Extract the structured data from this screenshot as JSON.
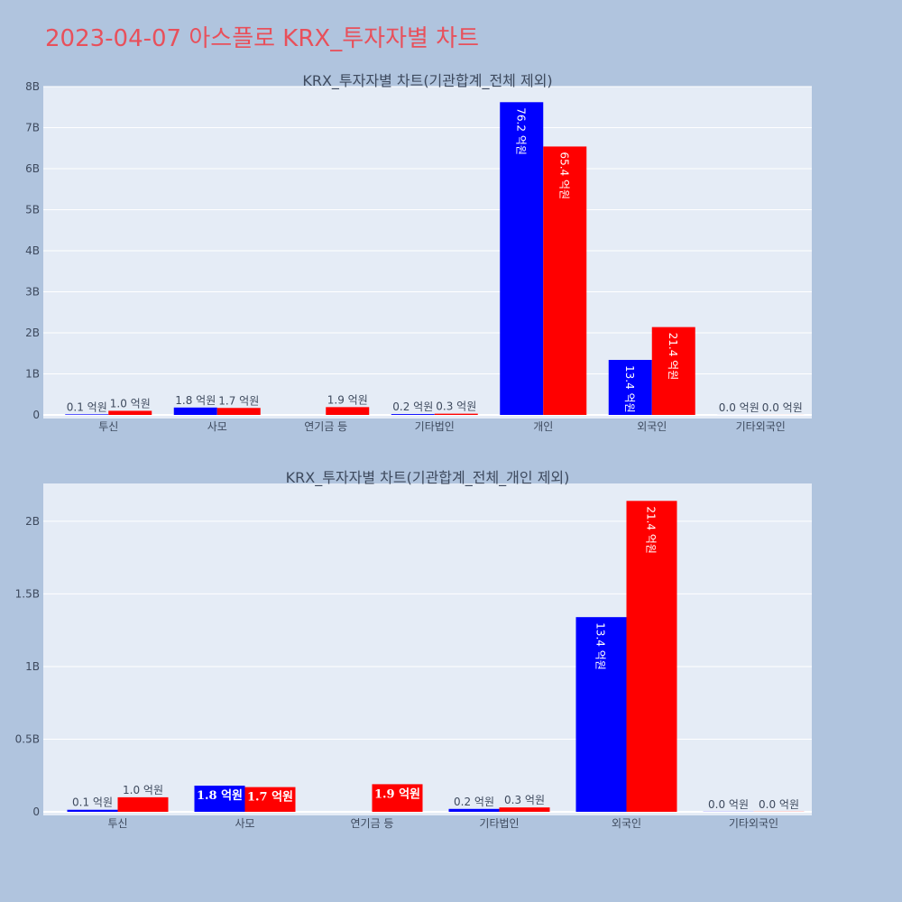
{
  "page": {
    "title": "2023-04-07 아스플로 KRX_투자자별 차트"
  },
  "chart_data": [
    {
      "type": "bar",
      "title": "KRX_투자자별 차트(기관합계_전체 제외)",
      "categories": [
        "투신",
        "사모",
        "연기금 등",
        "기타법인",
        "개인",
        "외국인",
        "기타외국인"
      ],
      "series": [
        {
          "values": [
            14000000,
            180000000,
            0,
            20000000,
            7620000000,
            1340000000,
            1000000
          ],
          "labels": [
            "0.1 억원",
            "1.8 억원",
            "",
            "0.2 억원",
            "76.2 억원",
            "13.4 억원",
            "0.0 억원"
          ],
          "color": "#0000ff"
        },
        {
          "values": [
            100000000,
            170000000,
            190000000,
            30000000,
            6540000000,
            2140000000,
            1000000
          ],
          "labels": [
            "1.0 억원",
            "1.7 억원",
            "1.9 억원",
            "0.3 억원",
            "65.4 억원",
            "21.4 억원",
            "0.0 억원"
          ],
          "color": "#ff0000"
        }
      ],
      "ylim": [
        0,
        8000000000
      ],
      "yticks": [
        0,
        1000000000,
        2000000000,
        3000000000,
        4000000000,
        5000000000,
        6000000000,
        7000000000,
        8000000000
      ],
      "yticklabels": [
        "0",
        "1B",
        "2B",
        "3B",
        "4B",
        "5B",
        "6B",
        "7B",
        "8B"
      ],
      "grid": true,
      "plot_bg": "#e5ecf6"
    },
    {
      "type": "bar",
      "title": "KRX_투자자별 차트(기관합계_전체_개인 제외)",
      "categories": [
        "투신",
        "사모",
        "연기금 등",
        "기타법인",
        "외국인",
        "기타외국인"
      ],
      "series": [
        {
          "values": [
            14000000,
            180000000,
            0,
            20000000,
            1340000000,
            1000000
          ],
          "labels": [
            "0.1 억원",
            "1.8 억원",
            "",
            "0.2 억원",
            "13.4 억원",
            "0.0 억원"
          ],
          "color": "#0000ff"
        },
        {
          "values": [
            100000000,
            170000000,
            190000000,
            30000000,
            2140000000,
            1000000
          ],
          "labels": [
            "1.0 억원",
            "1.7 억원",
            "1.9 억원",
            "0.3 억원",
            "21.4 억원",
            "0.0 억원"
          ],
          "color": "#ff0000"
        }
      ],
      "ylim": [
        0,
        2260000000
      ],
      "yticks": [
        0,
        500000000,
        1000000000,
        1500000000,
        2000000000
      ],
      "yticklabels": [
        "0",
        "0.5B",
        "1B",
        "1.5B",
        "2B"
      ],
      "grid": true,
      "plot_bg": "#e5ecf6"
    }
  ]
}
